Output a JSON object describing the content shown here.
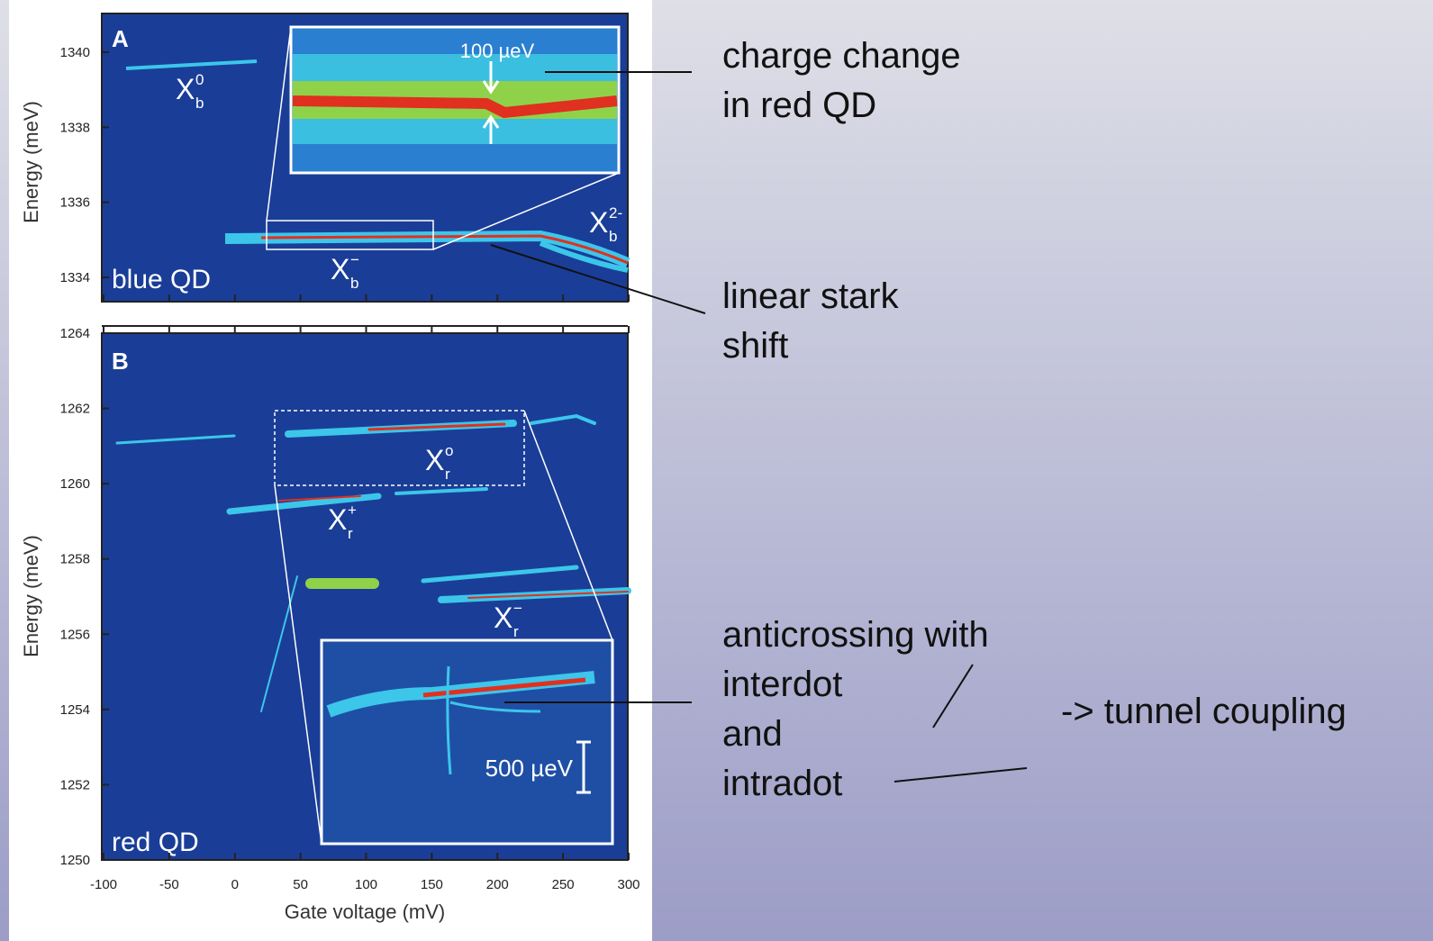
{
  "figure": {
    "panel_a": {
      "letter": "A",
      "tag": "blue QD",
      "y_label": "Energy (meV)",
      "yticks": [
        1334,
        1336,
        1338,
        1340
      ],
      "inset_label": "100 µeV",
      "peaks": [
        {
          "base": "X",
          "sub": "b",
          "sup": "0"
        },
        {
          "base": "X",
          "sub": "b",
          "sup": "−"
        },
        {
          "base": "X",
          "sub": "b",
          "sup": "2-"
        }
      ]
    },
    "panel_b": {
      "letter": "B",
      "tag": "red QD",
      "y_label": "Energy (meV)",
      "yticks": [
        1250,
        1252,
        1254,
        1256,
        1258,
        1260,
        1262,
        1264
      ],
      "inset_label": "500 µeV",
      "peaks": [
        {
          "base": "X",
          "sub": "r",
          "sup": "o"
        },
        {
          "base": "X",
          "sub": "r",
          "sup": "+"
        },
        {
          "base": "X",
          "sub": "r",
          "sup": "−"
        }
      ]
    },
    "x_label": "Gate voltage (mV)",
    "xticks": [
      -100,
      -50,
      0,
      50,
      100,
      150,
      200,
      250,
      300
    ]
  },
  "annotations": {
    "charge_change": [
      "charge change",
      "in red QD"
    ],
    "stark": [
      "linear stark",
      "shift"
    ],
    "anticrossing": [
      "anticrossing with",
      "interdot",
      "and",
      "intradot"
    ],
    "tunnel": "-> tunnel coupling"
  }
}
